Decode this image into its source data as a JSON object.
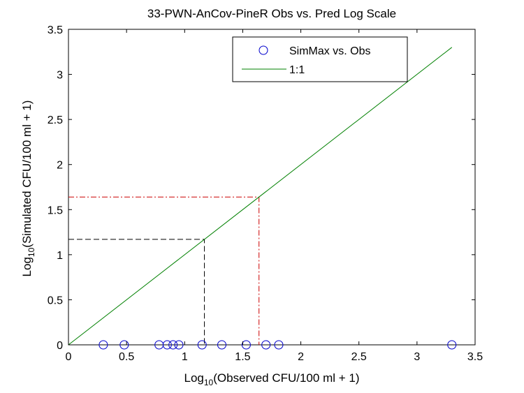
{
  "chart_data": {
    "type": "scatter",
    "title": "33-PWN-AnCov-PineR Obs vs. Pred Log Scale",
    "xlabel": {
      "prefix": "Log",
      "sub": "10",
      "suffix": "(Observed CFU/100 ml + 1)"
    },
    "ylabel": {
      "prefix": "Log",
      "sub": "10",
      "suffix": "(Simulated CFU/100 ml + 1)"
    },
    "xlim": [
      0,
      3.5
    ],
    "ylim": [
      0,
      3.5
    ],
    "xticks": [
      "0",
      "0.5",
      "1",
      "1.5",
      "2",
      "2.5",
      "3",
      "3.5"
    ],
    "yticks": [
      "0",
      "0.5",
      "1",
      "1.5",
      "2",
      "2.5",
      "3",
      "3.5"
    ],
    "grid": false,
    "legend_position": "top-right",
    "series": [
      {
        "name": "SimMax vs. Obs",
        "kind": "markers",
        "marker": "circle",
        "color": "#0000cc",
        "x": [
          0.3,
          0.48,
          0.78,
          0.85,
          0.9,
          0.95,
          1.15,
          1.32,
          1.53,
          1.7,
          1.81,
          3.3
        ],
        "y": [
          0,
          0,
          0,
          0,
          0,
          0,
          0,
          0,
          0,
          0,
          0,
          0
        ]
      },
      {
        "name": "1:1",
        "kind": "line",
        "color": "#008000",
        "x": [
          0,
          3.3
        ],
        "y": [
          0,
          3.3
        ]
      }
    ],
    "reference_lines": [
      {
        "color": "#000000",
        "style": "dashed",
        "x": [
          0,
          1.17,
          1.17
        ],
        "y": [
          1.17,
          1.17,
          0
        ]
      },
      {
        "color": "#cc0000",
        "style": "dashdot",
        "x": [
          0,
          1.64,
          1.64
        ],
        "y": [
          1.64,
          1.64,
          0
        ]
      }
    ]
  }
}
